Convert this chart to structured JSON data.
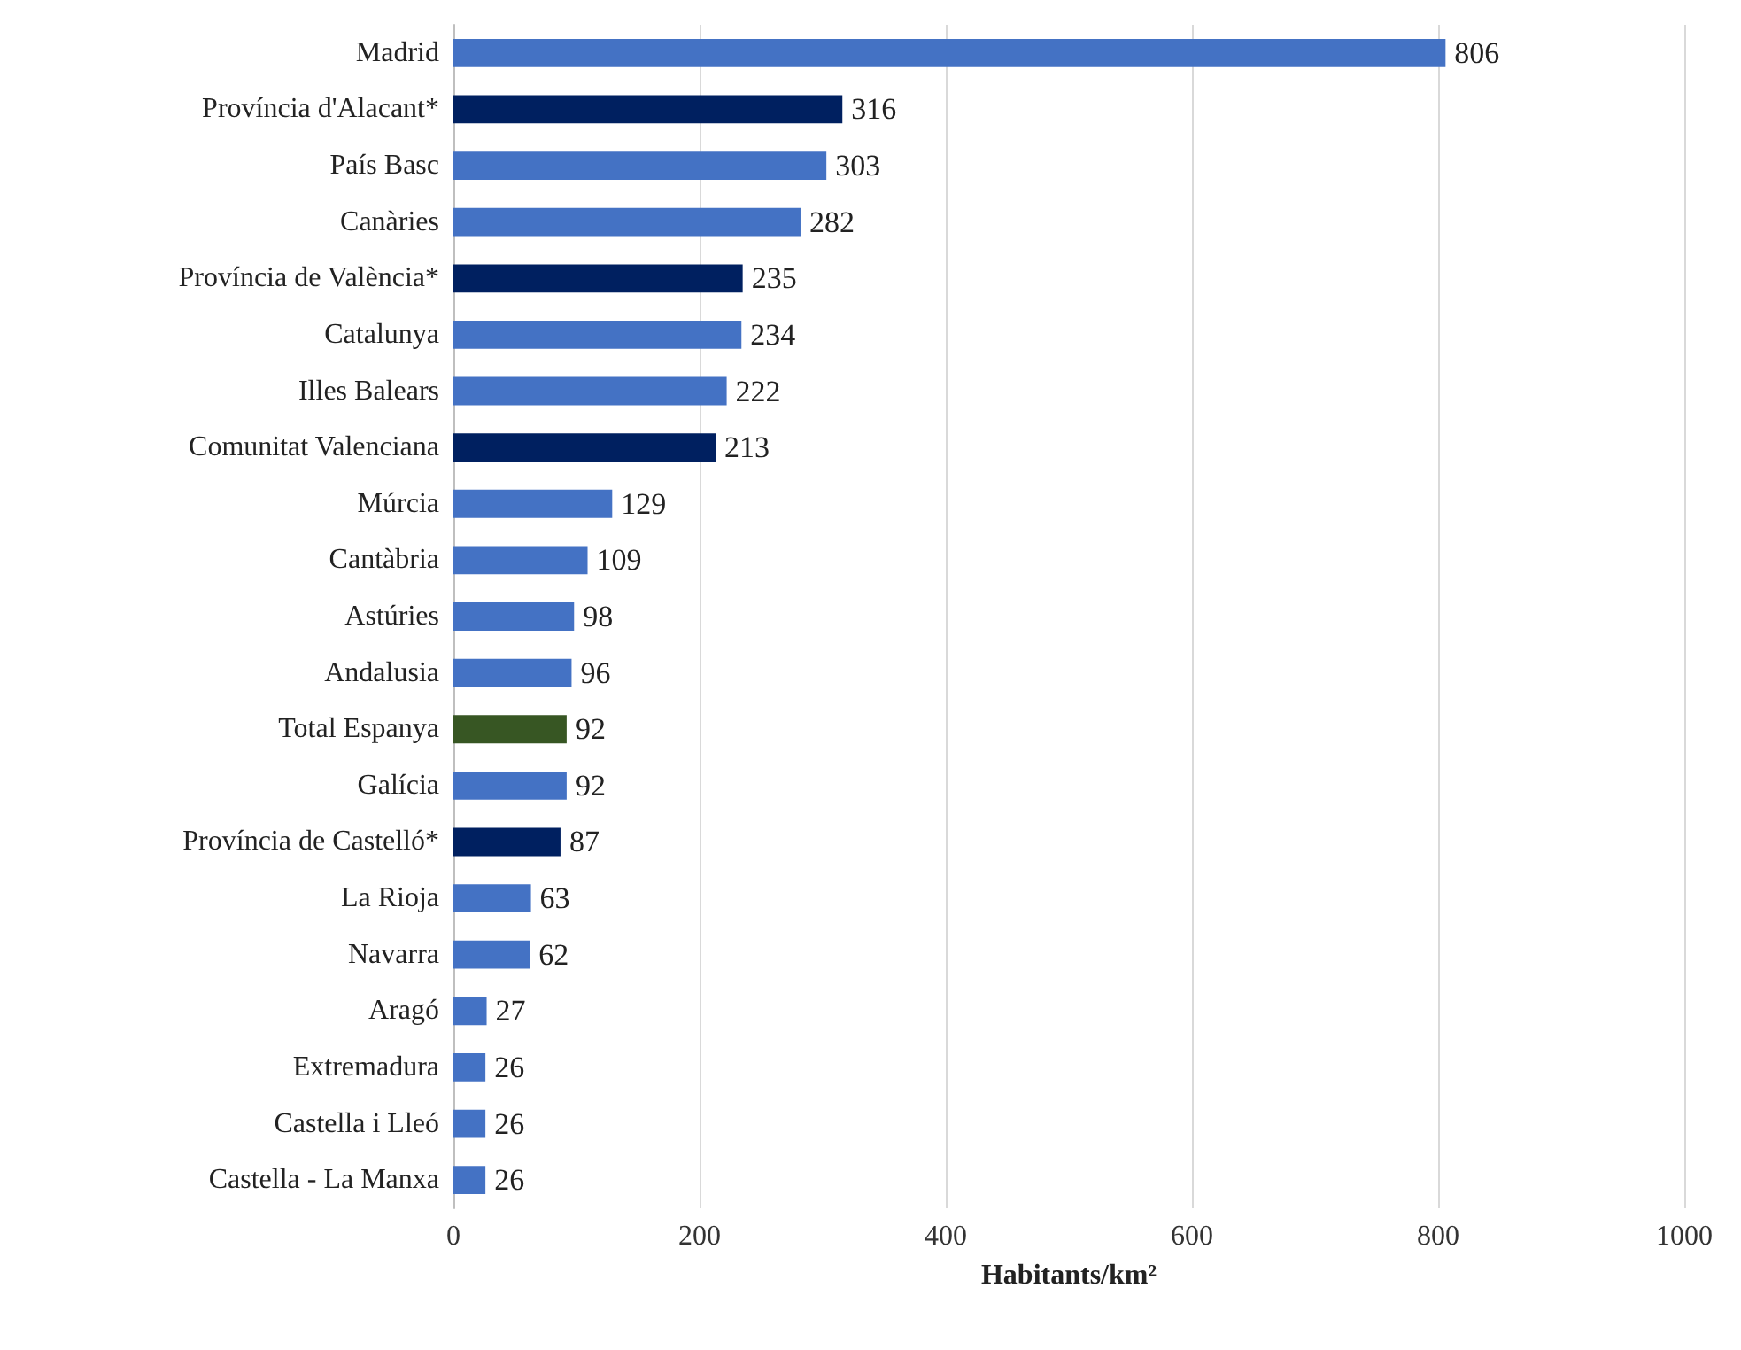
{
  "chart_data": {
    "type": "bar",
    "orientation": "horizontal",
    "xlabel": "Habitants/km²",
    "categories": [
      "Madrid",
      "Província d'Alacant*",
      "País Basc",
      "Canàries",
      "Província de València*",
      "Catalunya",
      "Illes Balears",
      "Comunitat Valenciana",
      "Múrcia",
      "Cantàbria",
      "Astúries",
      "Andalusia",
      "Total Espanya",
      "Galícia",
      "Província de Castelló*",
      "La Rioja",
      "Navarra",
      "Aragó",
      "Extremadura",
      "Castella i Lleó",
      "Castella - La Manxa"
    ],
    "values": [
      806,
      316,
      303,
      282,
      235,
      234,
      222,
      213,
      129,
      109,
      98,
      96,
      92,
      92,
      87,
      63,
      62,
      27,
      26,
      26,
      26
    ],
    "colors": [
      "#4472c4",
      "#002060",
      "#4472c4",
      "#4472c4",
      "#002060",
      "#4472c4",
      "#4472c4",
      "#002060",
      "#4472c4",
      "#4472c4",
      "#4472c4",
      "#4472c4",
      "#375623",
      "#4472c4",
      "#002060",
      "#4472c4",
      "#4472c4",
      "#4472c4",
      "#4472c4",
      "#4472c4",
      "#4472c4"
    ],
    "xlim": [
      0,
      1000
    ],
    "xticks": [
      0,
      200,
      400,
      600,
      800,
      1000
    ],
    "grid": "x",
    "data_labels": true
  }
}
